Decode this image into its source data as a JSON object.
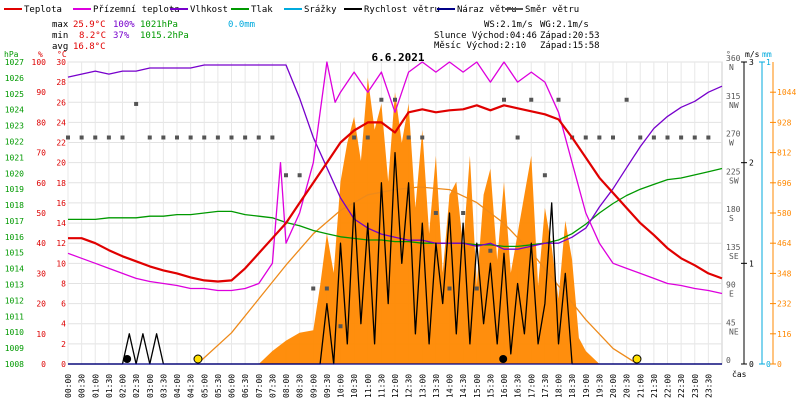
{
  "chart_data": {
    "type": "line",
    "title": "6.6.2021",
    "xlabel": "čas",
    "legend": {
      "placement": "top",
      "items": [
        {
          "label": "Teplota",
          "color": "#e00000"
        },
        {
          "label": "Přízemní teplota",
          "color": "#dd00dd"
        },
        {
          "label": "Vlhkost",
          "color": "#7700cc"
        },
        {
          "label": "Tlak",
          "color": "#009900"
        },
        {
          "label": "Srážky",
          "color": "#00aadd"
        },
        {
          "label": "Rychlost větru",
          "color": "#000000"
        },
        {
          "label": "Náraz větru",
          "color": "#000088"
        },
        {
          "label": "Směr větru",
          "color": "#555555"
        }
      ]
    },
    "stats": {
      "max_label": "max",
      "max_temp": "25.9°C",
      "max_hum": "100%",
      "max_press": "1021hPa",
      "max_rain": "0.0mm",
      "min_label": "min",
      "min_temp": "8.2°C",
      "min_hum": "37%",
      "min_press": "1015.2hPa",
      "avg_label": "avg",
      "avg_temp": "16.8°C"
    },
    "info": {
      "ws": "WS:2.1m/s",
      "wg": "WG:2.1m/s",
      "sun": "Slunce Východ:04:46",
      "sun_set": "Západ:20:53",
      "moon": "Měsíc  Východ:2:10",
      "moon_set": "Západ:15:58"
    },
    "axes": {
      "hpa": {
        "label": "hPa",
        "range": [
          1008,
          1027
        ],
        "ticks": [
          "1008",
          "1009",
          "1010",
          "1011",
          "1012",
          "1013",
          "1014",
          "1015",
          "1016",
          "1017",
          "1018",
          "1019",
          "1020",
          "1021",
          "1022",
          "1023",
          "1024",
          "1025",
          "1026",
          "1027"
        ]
      },
      "hum": {
        "label": "%",
        "range": [
          0,
          100
        ],
        "ticks": [
          "0",
          "10",
          "20",
          "30",
          "40",
          "50",
          "60",
          "70",
          "80",
          "90",
          "100"
        ]
      },
      "temp": {
        "label": "°C",
        "range": [
          0,
          30
        ],
        "ticks": [
          "0",
          "2",
          "4",
          "6",
          "8",
          "10",
          "12",
          "14",
          "16",
          "18",
          "20",
          "22",
          "24",
          "26",
          "28",
          "30"
        ]
      },
      "dir": {
        "label": "°",
        "range": [
          0,
          360
        ],
        "ticks": [
          {
            "v": 0,
            "t": "0"
          },
          {
            "v": 45,
            "t": "45 NE"
          },
          {
            "v": 90,
            "t": "90 E"
          },
          {
            "v": 135,
            "t": "135 SE"
          },
          {
            "v": 180,
            "t": "180 S"
          },
          {
            "v": 225,
            "t": "225 SW"
          },
          {
            "v": 270,
            "t": "270 W"
          },
          {
            "v": 315,
            "t": "315 NW"
          },
          {
            "v": 360,
            "t": "360 N"
          }
        ]
      },
      "ms": {
        "label": "m/s",
        "range": [
          0,
          3
        ],
        "ticks": [
          "0",
          "1",
          "2",
          "3"
        ]
      },
      "mm": {
        "label": "mm",
        "range": [
          0,
          1
        ],
        "ticks": [
          "0",
          "1"
        ]
      },
      "solar": {
        "label": "",
        "range": [
          0,
          1160
        ],
        "ticks": [
          "0",
          "116",
          "232",
          "348",
          "464",
          "580",
          "696",
          "812",
          "928",
          "1044"
        ]
      }
    },
    "x_ticks": [
      "00:00",
      "00:30",
      "01:00",
      "01:30",
      "02:00",
      "02:30",
      "03:00",
      "03:30",
      "04:00",
      "04:30",
      "05:00",
      "05:30",
      "06:00",
      "06:30",
      "07:00",
      "07:30",
      "08:00",
      "08:30",
      "09:00",
      "09:30",
      "10:00",
      "10:30",
      "11:00",
      "11:30",
      "12:00",
      "12:30",
      "13:00",
      "13:30",
      "14:00",
      "14:30",
      "15:00",
      "15:30",
      "16:00",
      "16:30",
      "17:00",
      "17:30",
      "18:00",
      "18:30",
      "19:00",
      "19:30",
      "20:00",
      "20:30",
      "21:00",
      "21:30",
      "22:00",
      "22:30",
      "23:00",
      "23:30"
    ],
    "series": [
      {
        "name": "Teplota",
        "unit": "°C",
        "color": "#e00000",
        "x": [
          0,
          0.5,
          1,
          1.5,
          2,
          2.5,
          3,
          3.5,
          4,
          4.5,
          5,
          5.5,
          6,
          6.5,
          7,
          7.5,
          8,
          8.5,
          9,
          9.5,
          10,
          10.5,
          11,
          11.5,
          12,
          12.5,
          13,
          13.5,
          14,
          14.5,
          15,
          15.5,
          16,
          16.5,
          17,
          17.5,
          18,
          18.5,
          19,
          19.5,
          20,
          20.5,
          21,
          21.5,
          22,
          22.5,
          23,
          23.5,
          24
        ],
        "values": [
          12.5,
          12.5,
          12,
          11.3,
          10.7,
          10.2,
          9.7,
          9.3,
          9,
          8.6,
          8.3,
          8.2,
          8.3,
          9.5,
          11,
          12.5,
          14,
          16,
          18,
          20,
          22,
          23.2,
          24,
          24,
          23,
          25,
          25.3,
          25,
          25.2,
          25.3,
          25.7,
          25.2,
          25.7,
          25.4,
          25.1,
          24.8,
          24.3,
          22.5,
          20.5,
          18.5,
          17,
          15.5,
          14,
          12.8,
          11.5,
          10.5,
          9.8,
          9,
          8.5
        ]
      },
      {
        "name": "Přízemní teplota",
        "unit": "°C",
        "color": "#dd00dd",
        "x": [
          0,
          0.5,
          1,
          1.5,
          2,
          2.5,
          3,
          3.5,
          4,
          4.5,
          5,
          5.5,
          6,
          6.5,
          7,
          7.5,
          7.8,
          8,
          8.5,
          9,
          9.5,
          9.8,
          10,
          10.5,
          11,
          11.5,
          12,
          12.5,
          13,
          13.5,
          14,
          14.5,
          15,
          15.5,
          16,
          16.5,
          17,
          17.5,
          18,
          18.5,
          19,
          19.5,
          20,
          20.5,
          21,
          21.5,
          22,
          22.5,
          23,
          23.5,
          24
        ],
        "values": [
          11,
          10.5,
          10,
          9.5,
          9,
          8.5,
          8.2,
          8,
          7.8,
          7.5,
          7.5,
          7.3,
          7.3,
          7.5,
          8,
          10,
          20,
          12,
          15,
          20,
          30,
          26,
          27,
          29,
          27,
          29,
          25,
          29,
          30,
          29,
          30,
          29,
          30,
          28,
          30,
          28,
          29,
          28,
          25,
          20,
          15,
          12,
          10,
          9.5,
          9,
          8.5,
          8,
          7.8,
          7.5,
          7.3,
          7
        ]
      },
      {
        "name": "Vlhkost",
        "unit": "%",
        "color": "#7700cc",
        "x": [
          0,
          0.5,
          1,
          1.5,
          2,
          2.5,
          3,
          3.5,
          4,
          4.5,
          5,
          5.5,
          6,
          6.5,
          7,
          7.5,
          8,
          8.5,
          9,
          9.5,
          10,
          10.5,
          11,
          11.5,
          12,
          12.5,
          13,
          13.5,
          14,
          14.5,
          15,
          15.5,
          16,
          16.5,
          17,
          17.5,
          18,
          18.5,
          19,
          19.5,
          20,
          20.5,
          21,
          21.5,
          22,
          22.5,
          23,
          23.5,
          24
        ],
        "values": [
          95,
          96,
          97,
          96,
          97,
          97,
          98,
          98,
          98,
          98,
          99,
          99,
          99,
          99,
          99,
          99,
          99,
          88,
          75,
          65,
          55,
          48,
          45,
          43,
          42,
          41,
          41,
          40,
          40,
          40,
          39,
          40,
          38,
          38,
          39,
          40,
          40,
          42,
          45,
          52,
          58,
          65,
          72,
          78,
          82,
          85,
          87,
          90,
          92
        ]
      },
      {
        "name": "Tlak",
        "unit": "hPa",
        "color": "#009900",
        "x": [
          0,
          0.5,
          1,
          1.5,
          2,
          2.5,
          3,
          3.5,
          4,
          4.5,
          5,
          5.5,
          6,
          6.5,
          7,
          7.5,
          8,
          8.5,
          9,
          9.5,
          10,
          10.5,
          11,
          11.5,
          12,
          12.5,
          13,
          13.5,
          14,
          14.5,
          15,
          15.5,
          16,
          16.5,
          17,
          17.5,
          18,
          18.5,
          19,
          19.5,
          20,
          20.5,
          21,
          21.5,
          22,
          22.5,
          23,
          23.5,
          24
        ],
        "values": [
          1017.1,
          1017.1,
          1017.1,
          1017.2,
          1017.2,
          1017.2,
          1017.3,
          1017.3,
          1017.4,
          1017.4,
          1017.5,
          1017.6,
          1017.6,
          1017.4,
          1017.3,
          1017.2,
          1016.9,
          1016.7,
          1016.4,
          1016.2,
          1016.0,
          1015.9,
          1015.8,
          1015.8,
          1015.7,
          1015.7,
          1015.6,
          1015.6,
          1015.6,
          1015.6,
          1015.5,
          1015.5,
          1015.4,
          1015.4,
          1015.5,
          1015.6,
          1015.8,
          1016.2,
          1016.8,
          1017.5,
          1018.1,
          1018.6,
          1019.0,
          1019.3,
          1019.6,
          1019.7,
          1019.9,
          1020.1,
          1020.3
        ]
      },
      {
        "name": "Rychlost větru",
        "unit": "m/s",
        "color": "#000000",
        "x": [
          0,
          2,
          2.25,
          2.5,
          2.75,
          3,
          3.25,
          3.5,
          4,
          8,
          9.25,
          9.5,
          9.75,
          10,
          10.25,
          10.5,
          10.75,
          11,
          11.25,
          11.5,
          11.75,
          12,
          12.25,
          12.5,
          12.75,
          13,
          13.25,
          13.5,
          13.75,
          14,
          14.25,
          14.5,
          14.75,
          15,
          15.25,
          15.5,
          15.75,
          16,
          16.25,
          16.5,
          16.75,
          17,
          17.25,
          17.5,
          17.75,
          18,
          18.25,
          18.5,
          19,
          24
        ],
        "values": [
          0,
          0,
          0.3,
          0,
          0.3,
          0,
          0.3,
          0,
          0,
          0,
          0,
          0.6,
          0,
          1.2,
          0.2,
          1.6,
          0.4,
          1.4,
          0.2,
          1.8,
          0.6,
          2.1,
          1.0,
          1.8,
          0.3,
          1.4,
          0.2,
          1.2,
          0.6,
          1.5,
          0.3,
          1.4,
          0.2,
          1.2,
          0.4,
          1.0,
          0.2,
          1.1,
          0.1,
          0.8,
          0.3,
          1.2,
          0.2,
          0.6,
          1.6,
          0.2,
          0.9,
          0,
          0,
          0
        ]
      },
      {
        "name": "Náraz větru",
        "unit": "m/s",
        "color": "#000088",
        "x": [
          0,
          24
        ],
        "values": [
          0,
          0
        ]
      },
      {
        "name": "Směr větru",
        "unit": "°",
        "color": "#555555",
        "type": "scatter",
        "x": [
          0,
          0.5,
          1,
          1.5,
          2,
          2.5,
          3,
          3.5,
          4,
          4.5,
          5,
          5.5,
          6,
          6.5,
          7,
          7.5,
          8,
          8.5,
          9,
          9.5,
          10,
          10.5,
          11,
          11.5,
          12,
          12.5,
          13,
          13.5,
          14,
          14.5,
          15,
          15.5,
          16,
          16.5,
          17,
          17.5,
          18,
          18.5,
          19,
          19.5,
          20,
          20.5,
          21,
          21.5,
          22,
          22.5,
          23,
          23.5
        ],
        "values": [
          270,
          270,
          270,
          270,
          270,
          310,
          270,
          270,
          270,
          270,
          270,
          270,
          270,
          270,
          270,
          270,
          225,
          225,
          90,
          90,
          45,
          270,
          270,
          315,
          315,
          270,
          270,
          180,
          90,
          180,
          90,
          135,
          315,
          270,
          315,
          225,
          315,
          270,
          270,
          270,
          270,
          315,
          270,
          270,
          270,
          270,
          270,
          270
        ]
      },
      {
        "name": "Sluneční záření",
        "unit": "W/m²",
        "color": "#ff8800",
        "type": "area",
        "x": [
          0,
          5,
          7,
          7.5,
          8,
          8.5,
          9,
          9.25,
          9.5,
          9.75,
          10,
          10.25,
          10.5,
          10.75,
          11,
          11.25,
          11.5,
          11.75,
          12,
          12.25,
          12.5,
          12.75,
          13,
          13.25,
          13.5,
          13.75,
          14,
          14.25,
          14.5,
          14.75,
          15,
          15.25,
          15.5,
          15.75,
          16,
          16.25,
          16.5,
          16.75,
          17,
          17.25,
          17.5,
          17.75,
          18,
          18.25,
          18.5,
          18.75,
          19,
          19.5,
          24
        ],
        "values": [
          0,
          0,
          0,
          50,
          90,
          120,
          130,
          300,
          500,
          350,
          700,
          850,
          950,
          780,
          1100,
          900,
          1000,
          700,
          1044,
          850,
          1000,
          600,
          900,
          500,
          800,
          350,
          650,
          700,
          450,
          800,
          300,
          650,
          750,
          400,
          700,
          350,
          500,
          650,
          800,
          300,
          600,
          450,
          250,
          550,
          400,
          100,
          50,
          0,
          0
        ]
      },
      {
        "name": "Teoretické záření",
        "unit": "W/m²",
        "color": "#ee8a1a",
        "x": [
          4.75,
          6,
          7,
          8,
          9,
          10,
          11,
          12,
          12.9,
          14,
          15,
          16,
          17,
          18,
          19,
          20,
          20.9
        ],
        "values": [
          0,
          120,
          250,
          380,
          500,
          590,
          650,
          670,
          680,
          670,
          620,
          540,
          430,
          300,
          170,
          60,
          0
        ]
      }
    ],
    "markers": [
      {
        "type": "moonrise",
        "time": 2.17,
        "color": "#000000"
      },
      {
        "type": "sunrise",
        "time": 4.77,
        "color": "#ffe000"
      },
      {
        "type": "moonset",
        "time": 15.97,
        "color": "#000000"
      },
      {
        "type": "sunset",
        "time": 20.88,
        "color": "#ffe000"
      }
    ]
  }
}
